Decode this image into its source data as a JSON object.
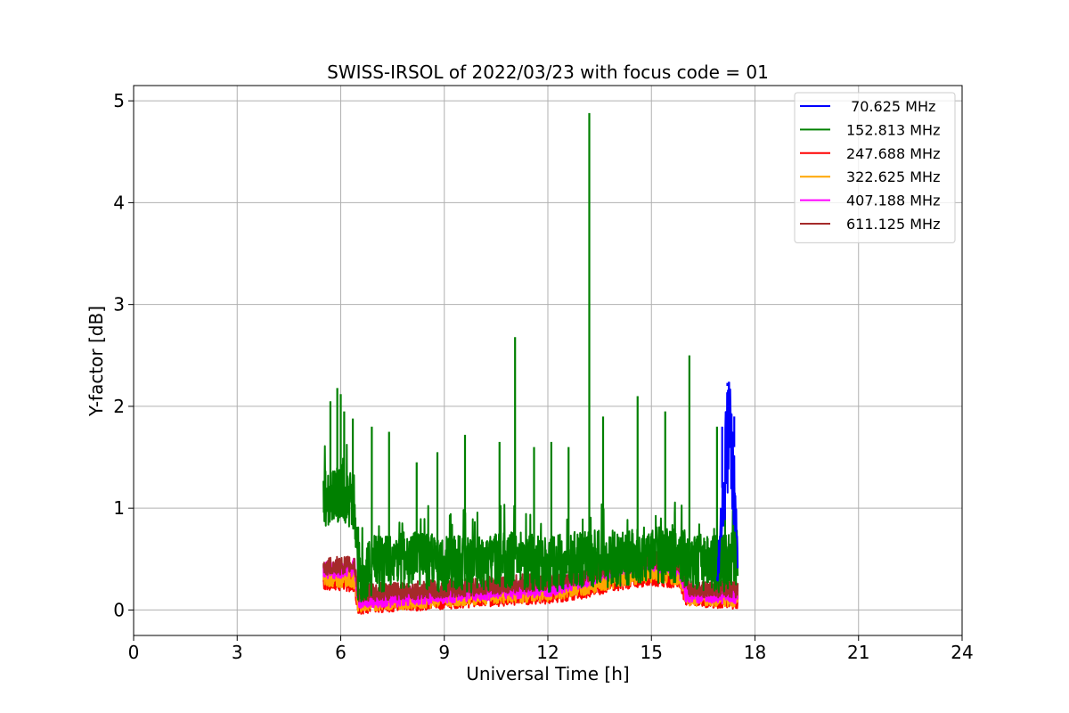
{
  "chart_data": {
    "type": "line",
    "title": "SWISS-IRSOL of 2022/03/23 with focus code = 01",
    "xlabel": "Universal Time [h]",
    "ylabel": "Y-factor [dB]",
    "xlim": [
      0,
      24
    ],
    "ylim": [
      -0.25,
      5.15
    ],
    "xticks": [
      0,
      3,
      6,
      9,
      12,
      15,
      18,
      21,
      24
    ],
    "yticks": [
      0,
      1,
      2,
      3,
      4,
      5
    ],
    "grid": true,
    "legend_position": "top-right",
    "series": [
      {
        "name": " 70.625 MHz",
        "color": "#0000ff",
        "x": [
          16.9,
          17.0,
          17.1,
          17.15,
          17.2,
          17.25,
          17.3,
          17.35,
          17.4,
          17.45,
          17.5
        ],
        "y": [
          0.4,
          0.9,
          1.5,
          1.9,
          2.23,
          2.15,
          2.05,
          1.85,
          1.6,
          1.2,
          0.5
        ],
        "spikes": [
          [
            17.25,
            2.24
          ],
          [
            17.2,
            2.2
          ],
          [
            17.05,
            1.8
          ],
          [
            17.4,
            1.9
          ]
        ]
      },
      {
        "name": "152.813 MHz",
        "color": "#008000",
        "x": [
          5.5,
          6.0,
          6.4,
          6.5,
          7.0,
          8.0,
          9.0,
          10.0,
          11.0,
          12.0,
          13.0,
          14.0,
          15.0,
          16.0,
          17.0,
          17.5
        ],
        "y": [
          1.1,
          1.15,
          1.05,
          0.3,
          0.45,
          0.5,
          0.45,
          0.45,
          0.5,
          0.45,
          0.5,
          0.5,
          0.55,
          0.5,
          0.45,
          0.5
        ],
        "spikes": [
          [
            5.7,
            2.05
          ],
          [
            5.9,
            2.18
          ],
          [
            6.0,
            2.12
          ],
          [
            6.1,
            1.95
          ],
          [
            6.35,
            1.88
          ],
          [
            6.9,
            1.8
          ],
          [
            7.4,
            1.75
          ],
          [
            8.2,
            1.45
          ],
          [
            8.8,
            1.55
          ],
          [
            9.6,
            1.72
          ],
          [
            10.6,
            1.65
          ],
          [
            11.05,
            2.68
          ],
          [
            11.6,
            1.6
          ],
          [
            12.1,
            1.65
          ],
          [
            12.6,
            1.6
          ],
          [
            13.2,
            4.88
          ],
          [
            13.6,
            1.9
          ],
          [
            14.6,
            2.1
          ],
          [
            15.4,
            1.95
          ],
          [
            16.1,
            2.5
          ],
          [
            16.9,
            1.8
          ],
          [
            17.4,
            1.2
          ]
        ]
      },
      {
        "name": "247.688 MHz",
        "color": "#ff0000",
        "x": [
          5.5,
          6.4,
          6.5,
          8.0,
          10.0,
          12.0,
          13.0,
          14.0,
          15.0,
          15.8,
          16.0,
          17.5
        ],
        "y": [
          0.28,
          0.27,
          0.05,
          0.08,
          0.12,
          0.15,
          0.2,
          0.28,
          0.33,
          0.3,
          0.12,
          0.1
        ],
        "spikes": []
      },
      {
        "name": "322.625 MHz",
        "color": "#ffa500",
        "x": [
          5.5,
          6.4,
          6.5,
          8.0,
          10.0,
          12.0,
          13.0,
          14.0,
          15.0,
          15.8,
          16.0,
          17.5
        ],
        "y": [
          0.32,
          0.3,
          0.07,
          0.1,
          0.14,
          0.17,
          0.23,
          0.31,
          0.36,
          0.33,
          0.13,
          0.12
        ],
        "spikes": []
      },
      {
        "name": "407.188 MHz",
        "color": "#ff00ff",
        "x": [
          5.5,
          6.4,
          6.5,
          8.0,
          10.0,
          12.0,
          13.0,
          14.0,
          15.0,
          15.8,
          16.0,
          17.5
        ],
        "y": [
          0.38,
          0.42,
          0.1,
          0.13,
          0.18,
          0.22,
          0.3,
          0.42,
          0.47,
          0.42,
          0.16,
          0.15
        ],
        "spikes": []
      },
      {
        "name": "611.125 MHz",
        "color": "#a52a2a",
        "x": [
          5.5,
          6.4,
          6.5,
          8.0,
          10.0,
          12.0,
          13.0,
          14.0,
          15.0,
          15.8,
          16.0,
          17.5
        ],
        "y": [
          0.42,
          0.45,
          0.17,
          0.19,
          0.23,
          0.28,
          0.33,
          0.44,
          0.5,
          0.45,
          0.22,
          0.2
        ],
        "spikes": []
      }
    ]
  }
}
